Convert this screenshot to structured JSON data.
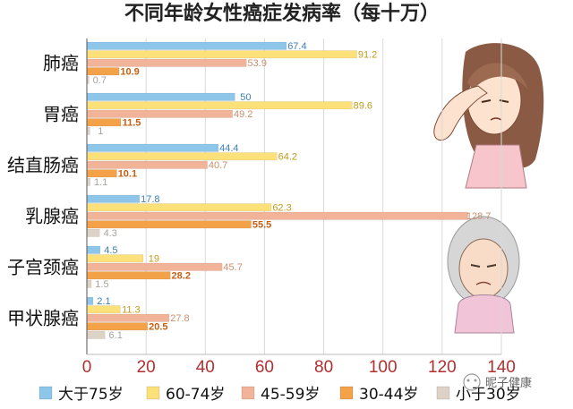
{
  "chart_data": {
    "type": "bar",
    "orientation": "horizontal",
    "title": "不同年龄女性癌症发病率（每十万）",
    "categories": [
      "肺癌",
      "胃癌",
      "结直肠癌",
      "乳腺癌",
      "子宫颈癌",
      "甲状腺癌"
    ],
    "series": [
      {
        "name": "大于75岁",
        "color": "#8ec6ea",
        "values": [
          67.4,
          50,
          44.4,
          17.8,
          4.5,
          2.1
        ]
      },
      {
        "name": "60-74岁",
        "color": "#fce07a",
        "values": [
          91.2,
          89.6,
          64.2,
          62.3,
          19,
          11.3
        ]
      },
      {
        "name": "45-59岁",
        "color": "#f2b498",
        "values": [
          53.9,
          49.2,
          40.7,
          128.7,
          45.7,
          27.8
        ]
      },
      {
        "name": "30-44岁",
        "color": "#f3a24a",
        "values": [
          10.9,
          11.5,
          10.1,
          55.5,
          28.2,
          20.5
        ]
      },
      {
        "name": "小于30岁",
        "color": "#ddd2c6",
        "values": [
          0.7,
          1,
          1.1,
          4.3,
          1.5,
          6.1
        ]
      }
    ],
    "label_colors": [
      "#3d80b5",
      "#c29a18",
      "#c9906e",
      "#c45f12",
      "#a8a39c"
    ],
    "xlim": [
      0,
      140
    ],
    "xticks": [
      0,
      20,
      40,
      60,
      80,
      100,
      120,
      140
    ],
    "legend_position": "bottom"
  },
  "watermark": "昵子健康"
}
